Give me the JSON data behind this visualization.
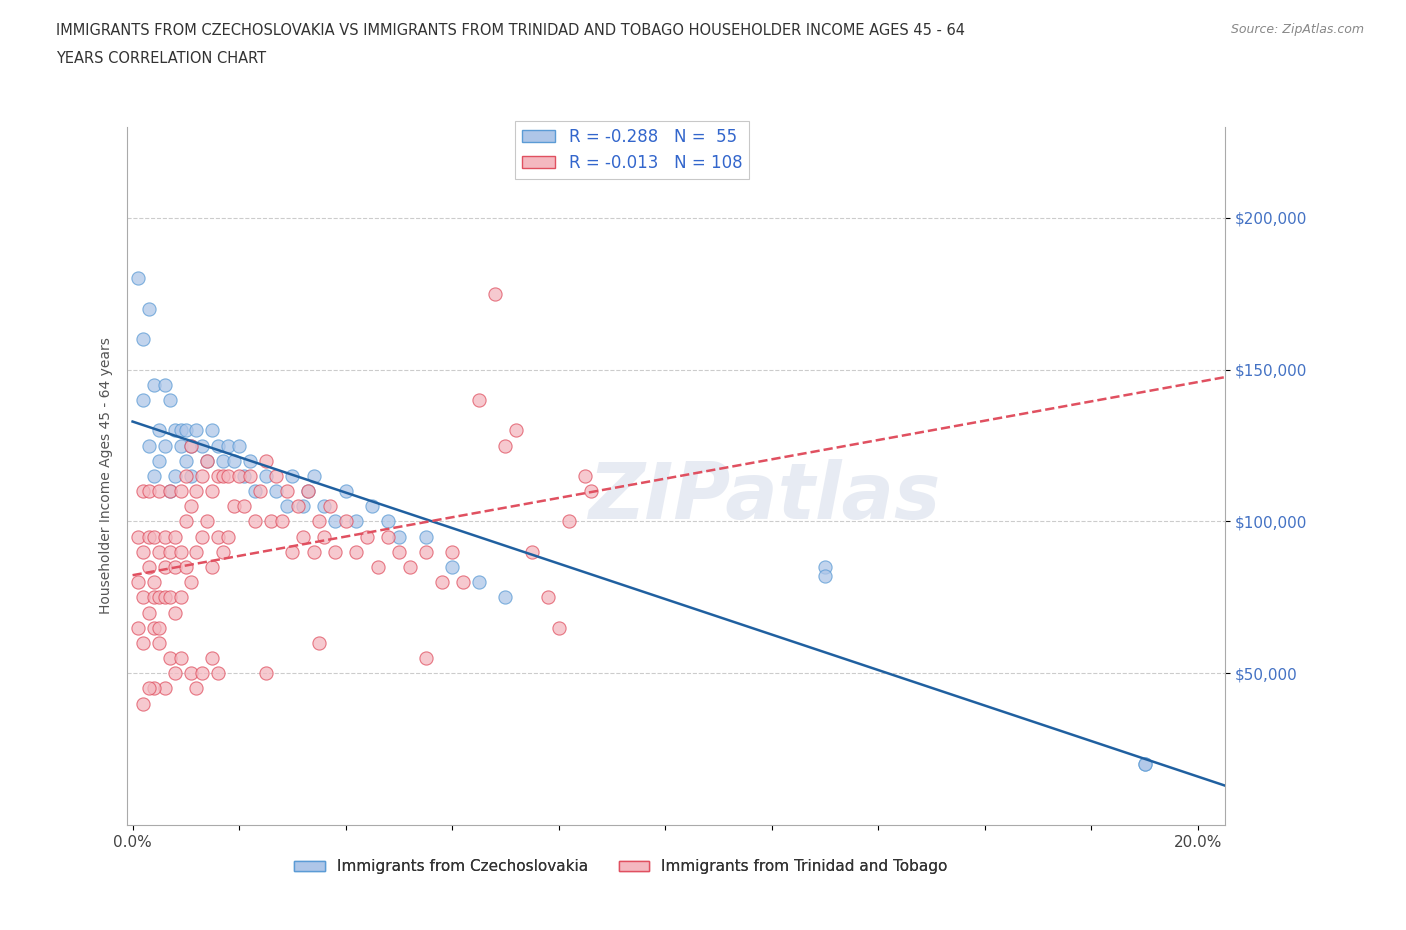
{
  "title_line1": "IMMIGRANTS FROM CZECHOSLOVAKIA VS IMMIGRANTS FROM TRINIDAD AND TOBAGO HOUSEHOLDER INCOME AGES 45 - 64",
  "title_line2": "YEARS CORRELATION CHART",
  "source_text": "Source: ZipAtlas.com",
  "ylabel": "Householder Income Ages 45 - 64 years",
  "xlim": [
    -0.001,
    0.205
  ],
  "ylim": [
    0,
    230000
  ],
  "yticks": [
    50000,
    100000,
    150000,
    200000
  ],
  "ytick_labels": [
    "$50,000",
    "$100,000",
    "$150,000",
    "$200,000"
  ],
  "xticks": [
    0.0,
    0.02,
    0.04,
    0.06,
    0.08,
    0.1,
    0.12,
    0.14,
    0.16,
    0.18,
    0.2
  ],
  "grid_color": "#cccccc",
  "background_color": "#ffffff",
  "watermark": "ZIPatlas",
  "series": [
    {
      "name": "Immigrants from Czechoslovakia",
      "color": "#aec6e8",
      "edge_color": "#5b9bd5",
      "R": -0.288,
      "N": 55,
      "trend_color": "#2060a0",
      "points_x": [
        0.001,
        0.002,
        0.002,
        0.003,
        0.003,
        0.004,
        0.004,
        0.005,
        0.005,
        0.006,
        0.006,
        0.007,
        0.007,
        0.008,
        0.008,
        0.009,
        0.009,
        0.01,
        0.01,
        0.011,
        0.011,
        0.012,
        0.013,
        0.014,
        0.015,
        0.016,
        0.017,
        0.018,
        0.019,
        0.02,
        0.021,
        0.022,
        0.023,
        0.025,
        0.027,
        0.029,
        0.03,
        0.032,
        0.033,
        0.034,
        0.036,
        0.038,
        0.04,
        0.042,
        0.045,
        0.048,
        0.05,
        0.055,
        0.06,
        0.065,
        0.07,
        0.13,
        0.13,
        0.19,
        0.19
      ],
      "points_y": [
        180000,
        160000,
        140000,
        170000,
        125000,
        145000,
        115000,
        130000,
        120000,
        145000,
        125000,
        140000,
        110000,
        130000,
        115000,
        130000,
        125000,
        130000,
        120000,
        125000,
        115000,
        130000,
        125000,
        120000,
        130000,
        125000,
        120000,
        125000,
        120000,
        125000,
        115000,
        120000,
        110000,
        115000,
        110000,
        105000,
        115000,
        105000,
        110000,
        115000,
        105000,
        100000,
        110000,
        100000,
        105000,
        100000,
        95000,
        95000,
        85000,
        80000,
        75000,
        85000,
        82000,
        20000,
        20000
      ]
    },
    {
      "name": "Immigrants from Trinidad and Tobago",
      "color": "#f4b8c0",
      "edge_color": "#e05060",
      "R": -0.013,
      "N": 108,
      "trend_color": "#e05060",
      "points_x": [
        0.001,
        0.001,
        0.001,
        0.002,
        0.002,
        0.002,
        0.002,
        0.003,
        0.003,
        0.003,
        0.003,
        0.004,
        0.004,
        0.004,
        0.004,
        0.005,
        0.005,
        0.005,
        0.005,
        0.006,
        0.006,
        0.006,
        0.007,
        0.007,
        0.007,
        0.008,
        0.008,
        0.008,
        0.009,
        0.009,
        0.009,
        0.01,
        0.01,
        0.01,
        0.011,
        0.011,
        0.011,
        0.012,
        0.012,
        0.013,
        0.013,
        0.014,
        0.014,
        0.015,
        0.015,
        0.016,
        0.016,
        0.017,
        0.017,
        0.018,
        0.018,
        0.019,
        0.02,
        0.021,
        0.022,
        0.023,
        0.024,
        0.025,
        0.026,
        0.027,
        0.028,
        0.029,
        0.03,
        0.031,
        0.032,
        0.033,
        0.034,
        0.035,
        0.036,
        0.037,
        0.038,
        0.04,
        0.042,
        0.044,
        0.046,
        0.048,
        0.05,
        0.052,
        0.055,
        0.058,
        0.06,
        0.062,
        0.065,
        0.068,
        0.07,
        0.072,
        0.075,
        0.078,
        0.08,
        0.082,
        0.085,
        0.086,
        0.055,
        0.035,
        0.025,
        0.015,
        0.012,
        0.008,
        0.006,
        0.004,
        0.003,
        0.002,
        0.005,
        0.007,
        0.009,
        0.011,
        0.013,
        0.016
      ],
      "points_y": [
        80000,
        95000,
        65000,
        90000,
        75000,
        60000,
        110000,
        85000,
        70000,
        95000,
        110000,
        80000,
        65000,
        95000,
        75000,
        90000,
        75000,
        65000,
        110000,
        85000,
        75000,
        95000,
        90000,
        75000,
        110000,
        85000,
        70000,
        95000,
        90000,
        75000,
        110000,
        100000,
        85000,
        115000,
        105000,
        80000,
        125000,
        110000,
        90000,
        115000,
        95000,
        120000,
        100000,
        110000,
        85000,
        115000,
        95000,
        115000,
        90000,
        115000,
        95000,
        105000,
        115000,
        105000,
        115000,
        100000,
        110000,
        120000,
        100000,
        115000,
        100000,
        110000,
        90000,
        105000,
        95000,
        110000,
        90000,
        100000,
        95000,
        105000,
        90000,
        100000,
        90000,
        95000,
        85000,
        95000,
        90000,
        85000,
        90000,
        80000,
        90000,
        80000,
        140000,
        175000,
        125000,
        130000,
        90000,
        75000,
        65000,
        100000,
        115000,
        110000,
        55000,
        60000,
        50000,
        55000,
        45000,
        50000,
        45000,
        45000,
        45000,
        40000,
        60000,
        55000,
        55000,
        50000,
        50000,
        50000
      ]
    }
  ]
}
